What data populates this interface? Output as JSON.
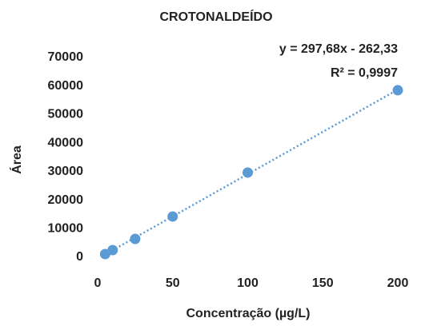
{
  "chart_data": {
    "type": "scatter",
    "title": "CROTONALDEÍDO",
    "x_label": "Concentração (µg/L)",
    "y_label": "Área",
    "annotations": [
      "y = 297,68x - 262,33",
      "R² = 0,9997"
    ],
    "series": [
      {
        "name": "Crotonaldeído",
        "color": "#5b9bd5",
        "x": [
          5,
          10,
          25,
          50,
          100,
          200
        ],
        "values": [
          1120,
          2520,
          6440,
          14290,
          29690,
          58540
        ]
      }
    ],
    "trendline": true,
    "xlim": [
      0,
      200
    ],
    "xticks": [
      0,
      50,
      100,
      150,
      200
    ],
    "ylim": [
      0,
      70000
    ],
    "yticks": [
      0,
      10000,
      20000,
      30000,
      40000,
      50000,
      60000,
      70000
    ]
  }
}
